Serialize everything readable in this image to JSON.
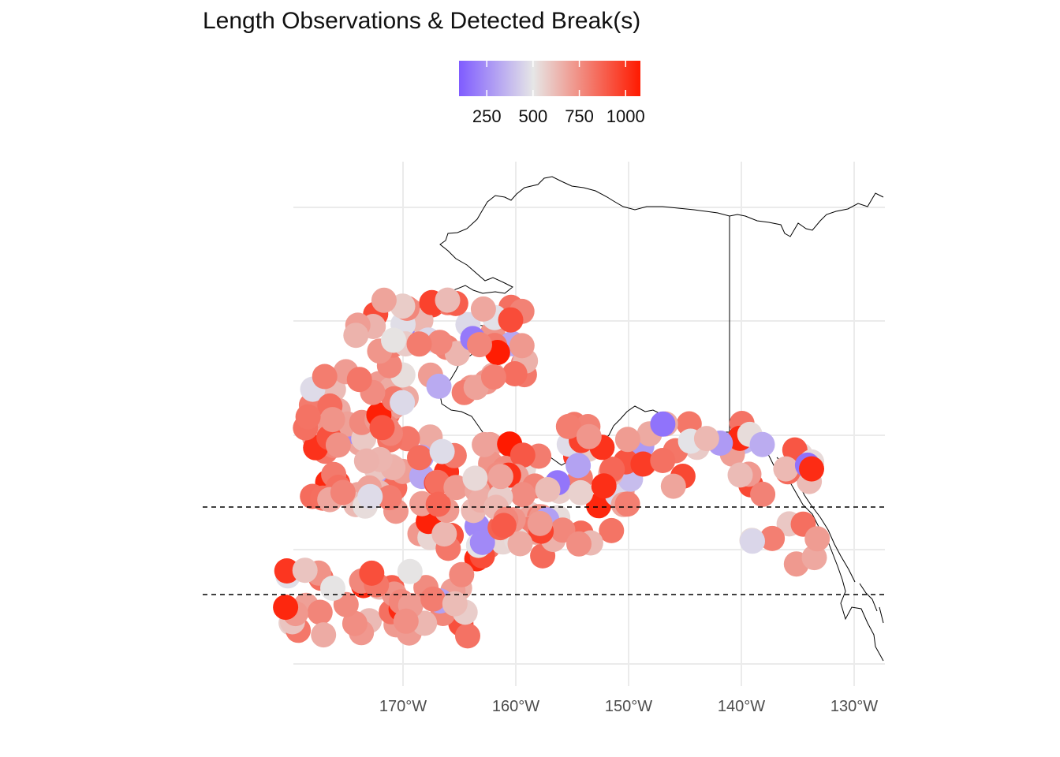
{
  "title": "Length Observations & Detected Break(s)",
  "legend": {
    "ticks": [
      "250",
      "500",
      "750",
      "1000"
    ],
    "tick_values": [
      250,
      500,
      750,
      1000
    ],
    "range": [
      100,
      1080
    ],
    "colors": {
      "low": "#7f5cff",
      "mid": "#e6e6e6",
      "high": "#ff1a00"
    },
    "midpoint": 500
  },
  "x_axis": {
    "ticks": [
      "170°W",
      "160°W",
      "150°W",
      "140°W",
      "130°W"
    ],
    "tick_values": [
      -170,
      -160,
      -150,
      -140,
      -130
    ]
  },
  "breaks": {
    "latitudes": [
      55.2,
      51.4
    ],
    "style": "dashed"
  }
}
